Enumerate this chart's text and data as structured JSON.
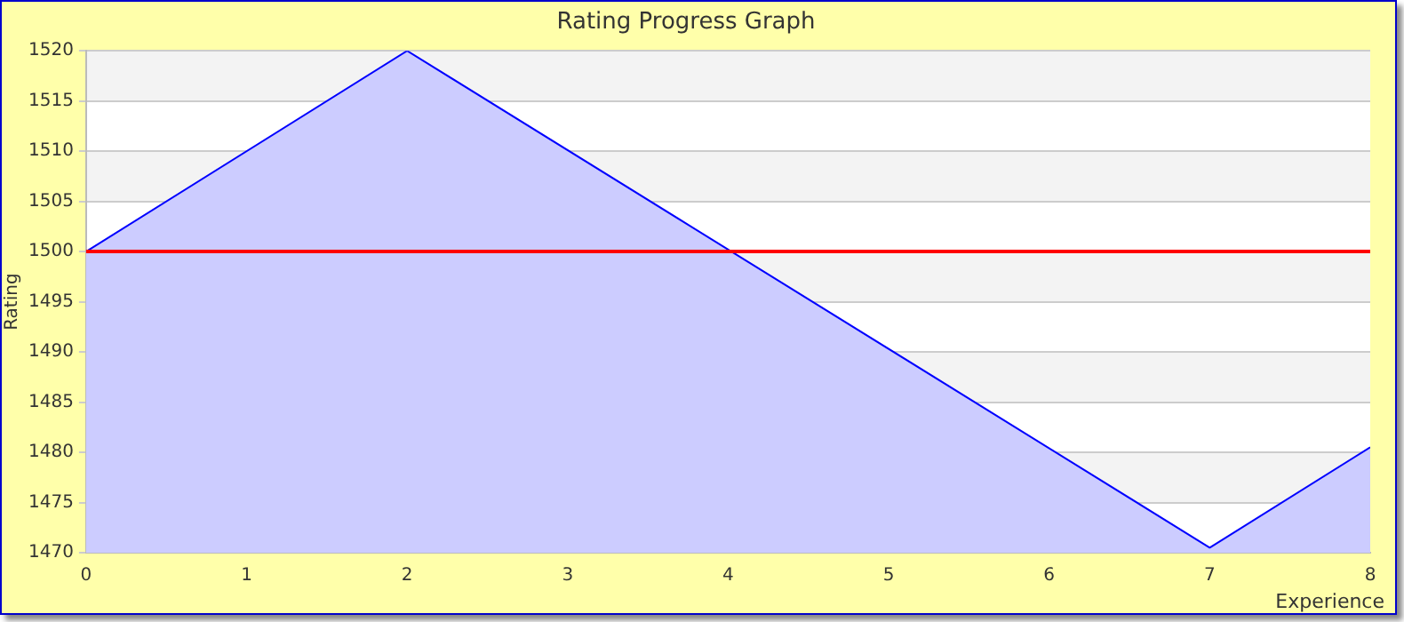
{
  "chart_data": {
    "type": "area",
    "title": "Rating Progress Graph",
    "xlabel": "Experience",
    "ylabel": "Rating",
    "x": [
      0,
      2,
      7,
      8
    ],
    "series": [
      {
        "color": "#0000ff",
        "values": [
          1500,
          1520,
          1470.5,
          1480.5
        ]
      }
    ],
    "xlim": [
      0,
      8
    ],
    "xticks": [
      0,
      1,
      2,
      3,
      4,
      5,
      6,
      7,
      8
    ],
    "ylim": [
      1470,
      1520
    ],
    "yticks": [
      1470,
      1475,
      1480,
      1485,
      1490,
      1495,
      1500,
      1505,
      1510,
      1515,
      1520
    ],
    "ref_lines": [
      {
        "axis": "y",
        "value": 1500,
        "color": "#ff0000"
      }
    ],
    "grid": "y",
    "legend": false,
    "marker": "none"
  }
}
